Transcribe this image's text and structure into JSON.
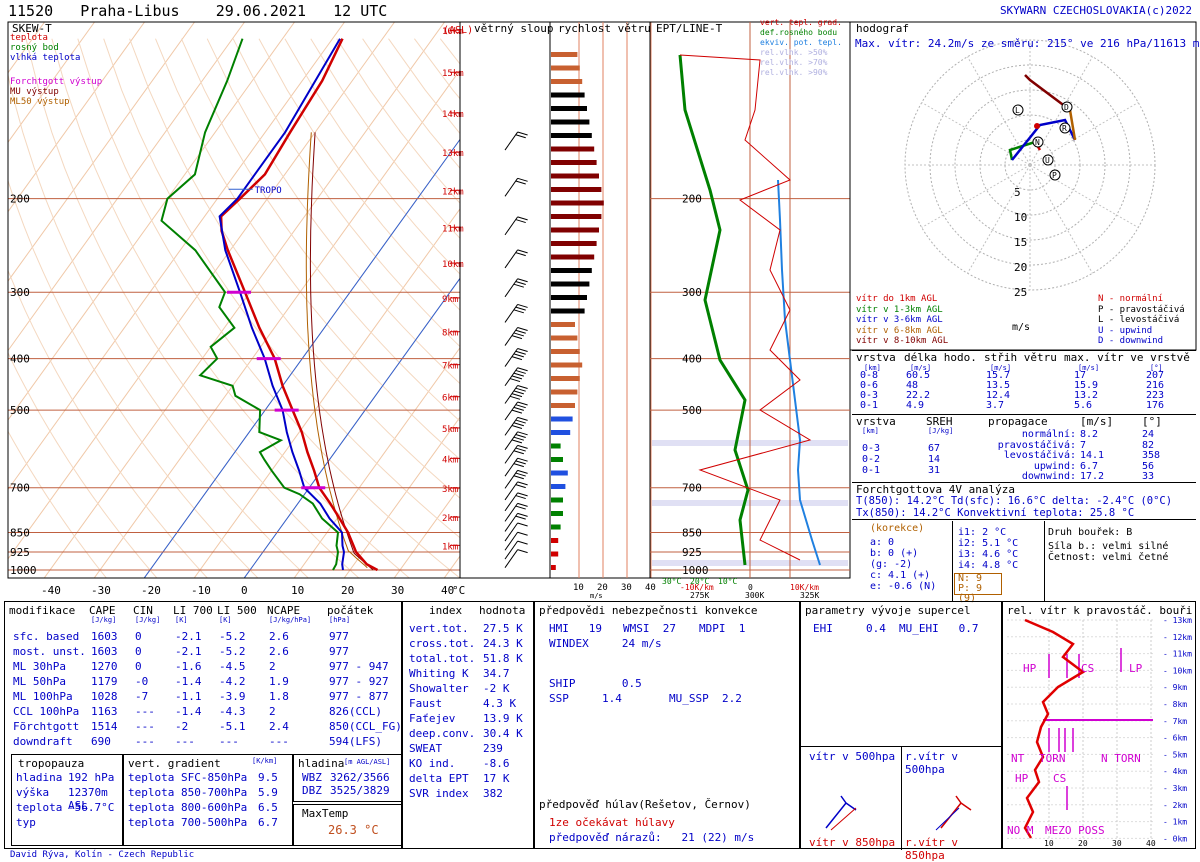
{
  "header": {
    "station_id": "11520",
    "station": "Praha-Libus",
    "date": "29.06.2021",
    "time": "12 UTC",
    "credit": "SKYWARN CZECHOSLOVAKIA(c)2022"
  },
  "footer": {
    "author": "David Rýva, Kolín - Czech Republic"
  },
  "skewt": {
    "title": "SKEW-T",
    "legend": [
      {
        "label": "teplota",
        "color": "#d00000"
      },
      {
        "label": "rosný bod",
        "color": "#008000"
      },
      {
        "label": "vlhká teplota",
        "color": "#0000c8"
      }
    ],
    "legend2": [
      {
        "label": "Forchtgott výstup",
        "color": "#d000d0"
      },
      {
        "label": "MU výstup",
        "color": "#800000"
      },
      {
        "label": "ML50 výstup",
        "color": "#b06000"
      }
    ],
    "asl_label": "(ASL)",
    "tropo_label": "TROPO",
    "wind_column_title": "větrný sloup",
    "temp_unit": "°C"
  },
  "chart_data": [
    {
      "type": "line",
      "title": "SKEW-T",
      "y_axis": "pressure_hPa",
      "y_ticks": [
        200,
        300,
        400,
        500,
        700,
        850,
        925,
        1000
      ],
      "x_ticks": [
        -40,
        -30,
        -20,
        -10,
        0,
        10,
        20,
        30,
        40
      ],
      "height_ticks": [
        "1km",
        "2km",
        "3km",
        "4km",
        "5km",
        "6km",
        "7km",
        "8km",
        "9km",
        "10km",
        "11km",
        "12km",
        "13km",
        "14km",
        "15km",
        "16km"
      ],
      "series": [
        {
          "name": "teplota",
          "color": "#d00000",
          "points": [
            [
              1000,
              25.5
            ],
            [
              975,
              22.5
            ],
            [
              925,
              18.6
            ],
            [
              900,
              17.2
            ],
            [
              850,
              14.2
            ],
            [
              800,
              10.5
            ],
            [
              750,
              6.5
            ],
            [
              700,
              2.0
            ],
            [
              650,
              -1.5
            ],
            [
              600,
              -5.5
            ],
            [
              550,
              -9.5
            ],
            [
              500,
              -14.5
            ],
            [
              450,
              -20.0
            ],
            [
              400,
              -25.5
            ],
            [
              350,
              -33.0
            ],
            [
              300,
              -41.0
            ],
            [
              250,
              -50.5
            ],
            [
              230,
              -54.5
            ],
            [
              216,
              -56.7
            ],
            [
              200,
              -55.5
            ],
            [
              180,
              -54.0
            ],
            [
              150,
              -55.0
            ],
            [
              120,
              -56.0
            ],
            [
              100,
              -58.0
            ]
          ]
        },
        {
          "name": "rosný bod",
          "color": "#008000",
          "points": [
            [
              1000,
              16.6
            ],
            [
              975,
              16.4
            ],
            [
              925,
              15.0
            ],
            [
              900,
              13.8
            ],
            [
              850,
              12.2
            ],
            [
              800,
              7.0
            ],
            [
              750,
              3.0
            ],
            [
              720,
              -1.0
            ],
            [
              700,
              -5.0
            ],
            [
              650,
              -10.0
            ],
            [
              620,
              -13.0
            ],
            [
              600,
              -15.0
            ],
            [
              570,
              -12.5
            ],
            [
              550,
              -18.0
            ],
            [
              500,
              -21.0
            ],
            [
              470,
              -28.0
            ],
            [
              450,
              -30.0
            ],
            [
              430,
              -38.0
            ],
            [
              400,
              -37.0
            ],
            [
              380,
              -40.0
            ],
            [
              350,
              -38.0
            ],
            [
              320,
              -44.0
            ],
            [
              300,
              -45.0
            ],
            [
              250,
              -57.0
            ],
            [
              220,
              -68.0
            ],
            [
              200,
              -70.0
            ],
            [
              180,
              -68.0
            ],
            [
              150,
              -72.0
            ],
            [
              120,
              -75.0
            ],
            [
              100,
              -78.0
            ]
          ]
        },
        {
          "name": "vlhká teplota",
          "color": "#0000c8",
          "points": [
            [
              1000,
              18.6
            ],
            [
              975,
              17.6
            ],
            [
              925,
              16.2
            ],
            [
              900,
              15.0
            ],
            [
              850,
              13.0
            ],
            [
              800,
              8.5
            ],
            [
              750,
              4.5
            ],
            [
              700,
              -1.0
            ],
            [
              650,
              -4.5
            ],
            [
              600,
              -8.5
            ],
            [
              550,
              -12.5
            ],
            [
              500,
              -16.5
            ],
            [
              450,
              -22.0
            ],
            [
              400,
              -27.5
            ],
            [
              350,
              -34.5
            ],
            [
              300,
              -42.0
            ],
            [
              250,
              -51.0
            ],
            [
              216,
              -57.0
            ],
            [
              200,
              -56.0
            ],
            [
              150,
              -56.0
            ],
            [
              100,
              -58.5
            ]
          ]
        }
      ],
      "wind_speeds_ms": [
        3,
        4,
        5,
        6,
        8,
        9,
        10,
        12,
        14,
        15,
        17,
        18,
        20,
        22,
        24,
        23,
        21,
        19,
        16,
        14,
        12,
        11,
        9,
        8
      ]
    },
    {
      "type": "bar",
      "title": "rychlost větru",
      "x_ticks": [
        10,
        20,
        30,
        40
      ],
      "x_unit": "m/s",
      "values_ms": [
        2,
        3,
        3,
        4,
        5,
        5,
        6,
        7,
        5,
        4,
        8,
        9,
        10,
        11,
        12,
        13,
        12,
        11,
        10,
        14,
        15,
        16,
        17,
        18,
        19,
        20,
        21,
        22,
        21,
        20,
        19,
        18,
        17,
        16,
        15,
        14,
        13,
        12,
        11,
        10
      ]
    },
    {
      "type": "line",
      "title": "EPT/LINE-T",
      "legend": [
        "vert. tepl. grad.",
        "def.rosného bodu",
        "ekviv. pot. tepl.",
        "rel.vlhk. >50%",
        "rel.vlhk. >70%",
        "rel.vlhk. >90%"
      ],
      "x_bottom_labels": [
        "30°C",
        "20°C",
        "10°C",
        "0",
        "10K/km",
        "-10K/km",
        "275K",
        "300K",
        "325K"
      ]
    },
    {
      "type": "line",
      "title": "hodograf",
      "max_wind": "Max. vítr: 24.2m/s ze směru: 215° ve 216 hPa/11613 m.n.m.",
      "rings_ms": [
        5,
        10,
        15,
        20,
        25
      ],
      "ring_unit": "m/s",
      "layers": [
        {
          "name": "vítr do 1km AGL",
          "color": "#d00000"
        },
        {
          "name": "vítr v 1-3km AGL",
          "color": "#008000"
        },
        {
          "name": "vítr v 3-6km AGL",
          "color": "#0000c8"
        },
        {
          "name": "vítr v 6-8km AGL",
          "color": "#b06000"
        },
        {
          "name": "vítr v 8-10km AGL",
          "color": "#800000"
        }
      ],
      "markers": [
        {
          "key": "N",
          "desc": "normální"
        },
        {
          "key": "P",
          "desc": "pravostáčivá"
        },
        {
          "key": "L",
          "desc": "levostáčivá"
        },
        {
          "key": "U",
          "desc": "upwind"
        },
        {
          "key": "D",
          "desc": "downwind"
        }
      ]
    }
  ],
  "hodo_table": {
    "headers": [
      "vrstva",
      "délka hodo.",
      "střih větru",
      "max. vítr ve vrstvě"
    ],
    "units": [
      "[km]",
      "[m/s]",
      "[m/s]",
      "[m/s]",
      "[°]"
    ],
    "rows": [
      [
        "0-8",
        "60.5",
        "15.7",
        "17",
        "207"
      ],
      [
        "0-6",
        "48",
        "13.5",
        "15.9",
        "216"
      ],
      [
        "0-3",
        "22.2",
        "12.4",
        "13.2",
        "223"
      ],
      [
        "0-1",
        "4.9",
        "3.7",
        "5.6",
        "176"
      ]
    ]
  },
  "sreh_table": {
    "headers": [
      "vrstva",
      "SREH",
      "propagace",
      "[m/s]",
      "[°]"
    ],
    "units": [
      "[km]",
      "[J/kg]"
    ],
    "rows": [
      [
        "0-3",
        "67"
      ],
      [
        "0-2",
        "14"
      ],
      [
        "0-1",
        "31"
      ]
    ],
    "prop": [
      [
        "normální:",
        "8.2",
        "24"
      ],
      [
        "pravostáčivá:",
        "7",
        "82"
      ],
      [
        "levostáčivá:",
        "14.1",
        "358"
      ],
      [
        "upwind:",
        "6.7",
        "56"
      ],
      [
        "downwind:",
        "17.2",
        "33"
      ]
    ]
  },
  "forchtgott": {
    "title": "Forchtgottova 4V analýza",
    "line1": "T(850): 14.2°C  Td(sfc): 16.6°C  delta: -2.4°C (0°C)",
    "line2": "Tx(850): 14.2°C   Konvektivní teplota: 25.8 °C",
    "korekce": "(korekce)",
    "a": "a: 0",
    "b": "b: 0 (+)",
    "g": "(g: -2)",
    "c": "c: 4.1 (+)",
    "e": "e: -0.6 (N)",
    "i1": "i1: 2 °C",
    "i2": "i2: 5.1 °C",
    "i3": "i3: 4.6 °C",
    "i4": "i4: 4.8 °C",
    "N": "N: 9",
    "P": "P: 9 (9)",
    "storm_type": "Druh bouřek: B",
    "storm_force": "Síla b.: velmi silné",
    "storm_freq": "Četnost: velmi četné"
  },
  "mod_table": {
    "headers": [
      "modifikace",
      "CAPE",
      "CIN",
      "LI 700",
      "LI 500",
      "NCAPE",
      "počátek"
    ],
    "units": [
      "",
      "[J/kg]",
      "[J/kg]",
      "[K]",
      "[K]",
      "[J/kg/hPa]",
      "[hPa]"
    ],
    "rows": [
      [
        "sfc. based",
        "1603",
        "0",
        "-2.1",
        "-5.2",
        "2.6",
        "977"
      ],
      [
        "most. unst.",
        "1603",
        "0",
        "-2.1",
        "-5.2",
        "2.6",
        "977"
      ],
      [
        "ML 30hPa",
        "1270",
        "0",
        "-1.6",
        "-4.5",
        "2",
        "977 - 947"
      ],
      [
        "ML 50hPa",
        "1179",
        "-0",
        "-1.4",
        "-4.2",
        "1.9",
        "977 - 927"
      ],
      [
        "ML 100hPa",
        "1028",
        "-7",
        "-1.1",
        "-3.9",
        "1.8",
        "977 - 877"
      ],
      [
        "CCL 100hPa",
        "1163",
        "---",
        "-1.4",
        "-4.3",
        "2",
        "826(CCL)"
      ],
      [
        "Fõrchtgott",
        "1514",
        "---",
        "-2",
        "-5.1",
        "2.4",
        "850(CCL_FG)"
      ],
      [
        "downdraft",
        "690",
        "---",
        "---",
        "---",
        "---",
        "594(LFS)"
      ]
    ]
  },
  "tropopause": {
    "title": "tropopauza",
    "rows": [
      [
        "hladina",
        "192 hPa"
      ],
      [
        "výška",
        "12370m ASL"
      ],
      [
        "teplota",
        "-56.7°C"
      ],
      [
        "typ",
        ""
      ]
    ]
  },
  "gradient": {
    "title": "vert. gradient",
    "unit": "[K/km]",
    "rows": [
      [
        "teplota SFC-850hPa",
        "9.5"
      ],
      [
        "teplota 850-700hPa",
        "5.9"
      ],
      [
        "teplota 800-600hPa",
        "6.5"
      ],
      [
        "teplota 700-500hPa",
        "6.7"
      ]
    ]
  },
  "hladina": {
    "title": "hladina",
    "unit": "[m AGL/ASL]",
    "rows": [
      [
        "WBZ",
        "3262/3566"
      ],
      [
        "DBZ",
        "3525/3829"
      ]
    ]
  },
  "maxtemp": {
    "title": "MaxTemp",
    "value": "26.3 °C"
  },
  "index_table": {
    "headers": [
      "index",
      "hodnota"
    ],
    "rows": [
      [
        "vert.tot.",
        "27.5 K"
      ],
      [
        "cross.tot.",
        "24.3 K"
      ],
      [
        "total.tot.",
        "51.8 K"
      ],
      [
        "Whiting K",
        "34.7"
      ],
      [
        "Showalter",
        "-2 K"
      ],
      [
        "Faust",
        "4.3 K"
      ],
      [
        "Faťejev",
        "13.9 K"
      ],
      [
        "deep.conv.",
        "30.4 K"
      ],
      [
        "SWEAT",
        "239"
      ],
      [
        "KO ind.",
        "-8.6"
      ],
      [
        "delta EPT",
        "17 K"
      ],
      [
        "SVR index",
        "382"
      ]
    ]
  },
  "forecast": {
    "title": "předpovědi nebezpečnosti konvekce",
    "hmi": "HMI   19",
    "wmsi": "WMSI  27",
    "mdpi": "MDPI  1",
    "windex": "WINDEX     24 m/s",
    "ship": "SHIP       0.5",
    "ssp": "SSP     1.4",
    "mussp": "MU_SSP  2.2",
    "hail_title": "předpověď húlav(Rešetov, Černov)",
    "hail_line": "1ze očekávat húlavy",
    "gust_line": "předpověď nárazů:   21 (22) m/s"
  },
  "supercell": {
    "title": "parametry vývoje supercel",
    "ehi": "EHI     0.4",
    "muehi": "MU_EHI   0.7",
    "v500": "vítr v 500hpa",
    "rv500": "r.vítr v 500hpa",
    "v850": "vítr v 850hpa",
    "rv850": "r.vítr v 850hpa"
  },
  "rel_wind": {
    "title": "rel. vítr k pravostáč. bouři",
    "km": [
      "13km",
      "12km",
      "11km",
      "10km",
      "9km",
      "8km",
      "7km",
      "6km",
      "5km",
      "4km",
      "3km",
      "2km",
      "1km",
      "0km"
    ],
    "x_ticks": [
      10,
      20,
      30,
      40
    ],
    "labels": [
      "HP",
      "CS",
      "LP",
      "NT",
      "TORN",
      "N TORN",
      "HP",
      "CS",
      "NO M",
      "MEZO POSS"
    ]
  }
}
